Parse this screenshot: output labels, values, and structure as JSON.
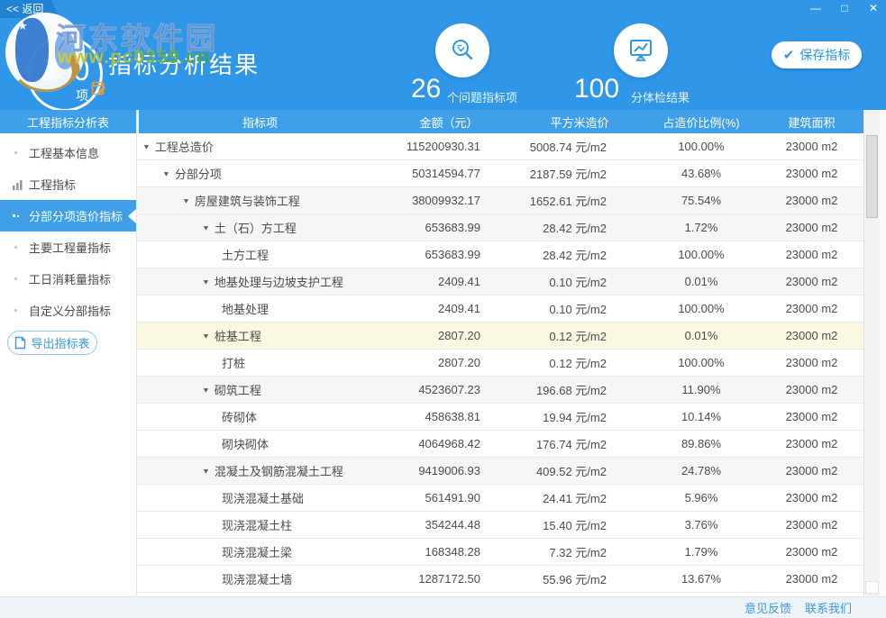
{
  "window": {
    "back_label": "<< 返回",
    "controls": [
      {
        "name": "minimize-button",
        "glyph": "—"
      },
      {
        "name": "maximize-button",
        "glyph": "□"
      },
      {
        "name": "close-button",
        "glyph": "✕"
      }
    ]
  },
  "watermark": {
    "site_name": "河东软件园",
    "site_url": "www.pc0359.cn"
  },
  "header": {
    "count": "250",
    "count_unit": "项",
    "title": "指标分析结果",
    "stats": [
      {
        "icon": "search-check-icon",
        "value": "26",
        "label": "个问题指标项"
      },
      {
        "icon": "monitor-chart-icon",
        "value": "100",
        "label": "分体检结果"
      }
    ],
    "save_label": "保存指标"
  },
  "sidebar": {
    "header": "工程指标分析表",
    "items": [
      {
        "label": "工程基本信息",
        "icon": "dot-icon",
        "selected": false
      },
      {
        "label": "工程指标",
        "icon": "bar-chart-icon",
        "selected": false
      },
      {
        "label": "分部分项造价指标",
        "icon": "squares-icon",
        "selected": true
      },
      {
        "label": "主要工程量指标",
        "icon": "dot-icon",
        "selected": false
      },
      {
        "label": "工日消耗量指标",
        "icon": "dot-icon",
        "selected": false
      },
      {
        "label": "自定义分部指标",
        "icon": "dot-icon",
        "selected": false
      }
    ],
    "export_label": "导出指标表"
  },
  "table": {
    "columns": [
      "指标项",
      "金额（元）",
      "平方米造价",
      "占造价比例(%)",
      "建筑面积"
    ],
    "rows": [
      {
        "name": "工程总造价",
        "level": 0,
        "expandable": true,
        "bg": "white",
        "amount": "115200930.31",
        "per_sqm": "5008.74 元/m2",
        "ratio": "100.00%",
        "area": "23000 m2"
      },
      {
        "name": "分部分项",
        "level": 1,
        "expandable": true,
        "bg": "white",
        "amount": "50314594.77",
        "per_sqm": "2187.59 元/m2",
        "ratio": "43.68%",
        "area": "23000 m2"
      },
      {
        "name": "房屋建筑与装饰工程",
        "level": 2,
        "expandable": true,
        "bg": "gray",
        "amount": "38009932.17",
        "per_sqm": "1652.61 元/m2",
        "ratio": "75.54%",
        "area": "23000 m2"
      },
      {
        "name": "土（石）方工程",
        "level": 3,
        "expandable": true,
        "bg": "gray",
        "amount": "653683.99",
        "per_sqm": "28.42 元/m2",
        "ratio": "1.72%",
        "area": "23000 m2"
      },
      {
        "name": "土方工程",
        "level": 4,
        "expandable": false,
        "bg": "white",
        "amount": "653683.99",
        "per_sqm": "28.42 元/m2",
        "ratio": "100.00%",
        "area": "23000 m2"
      },
      {
        "name": "地基处理与边坡支护工程",
        "level": 3,
        "expandable": true,
        "bg": "gray",
        "amount": "2409.41",
        "per_sqm": "0.10 元/m2",
        "ratio": "0.01%",
        "area": "23000 m2"
      },
      {
        "name": "地基处理",
        "level": 4,
        "expandable": false,
        "bg": "white",
        "amount": "2409.41",
        "per_sqm": "0.10 元/m2",
        "ratio": "100.00%",
        "area": "23000 m2"
      },
      {
        "name": "桩基工程",
        "level": 3,
        "expandable": true,
        "bg": "yellow",
        "amount": "2807.20",
        "per_sqm": "0.12 元/m2",
        "ratio": "0.01%",
        "area": "23000 m2"
      },
      {
        "name": "打桩",
        "level": 4,
        "expandable": false,
        "bg": "white",
        "amount": "2807.20",
        "per_sqm": "0.12 元/m2",
        "ratio": "100.00%",
        "area": "23000 m2"
      },
      {
        "name": "砌筑工程",
        "level": 3,
        "expandable": true,
        "bg": "gray",
        "amount": "4523607.23",
        "per_sqm": "196.68 元/m2",
        "ratio": "11.90%",
        "area": "23000 m2"
      },
      {
        "name": "砖砌体",
        "level": 4,
        "expandable": false,
        "bg": "white",
        "amount": "458638.81",
        "per_sqm": "19.94 元/m2",
        "ratio": "10.14%",
        "area": "23000 m2"
      },
      {
        "name": "砌块砌体",
        "level": 4,
        "expandable": false,
        "bg": "white",
        "amount": "4064968.42",
        "per_sqm": "176.74 元/m2",
        "ratio": "89.86%",
        "area": "23000 m2"
      },
      {
        "name": "混凝土及钢筋混凝土工程",
        "level": 3,
        "expandable": true,
        "bg": "gray",
        "amount": "9419006.93",
        "per_sqm": "409.52 元/m2",
        "ratio": "24.78%",
        "area": "23000 m2"
      },
      {
        "name": "现浇混凝土基础",
        "level": 4,
        "expandable": false,
        "bg": "white",
        "amount": "561491.90",
        "per_sqm": "24.41 元/m2",
        "ratio": "5.96%",
        "area": "23000 m2"
      },
      {
        "name": "现浇混凝土柱",
        "level": 4,
        "expandable": false,
        "bg": "white",
        "amount": "354244.48",
        "per_sqm": "15.40 元/m2",
        "ratio": "3.76%",
        "area": "23000 m2"
      },
      {
        "name": "现浇混凝土梁",
        "level": 4,
        "expandable": false,
        "bg": "white",
        "amount": "168348.28",
        "per_sqm": "7.32 元/m2",
        "ratio": "1.79%",
        "area": "23000 m2"
      },
      {
        "name": "现浇混凝土墙",
        "level": 4,
        "expandable": false,
        "bg": "white",
        "amount": "1287172.50",
        "per_sqm": "55.96 元/m2",
        "ratio": "13.67%",
        "area": "23000 m2"
      }
    ]
  },
  "footer": {
    "links": [
      "意见反馈",
      "联系我们"
    ]
  },
  "icons": {
    "expand": "▼",
    "check": "✔",
    "star": "★"
  },
  "colors": {
    "header_blue": "#2f96e8",
    "bar_blue": "#3fa0e9",
    "link_blue": "#3b97e3",
    "row_highlight": "#fbf8e1",
    "edit_orange": "#e9a23b"
  }
}
